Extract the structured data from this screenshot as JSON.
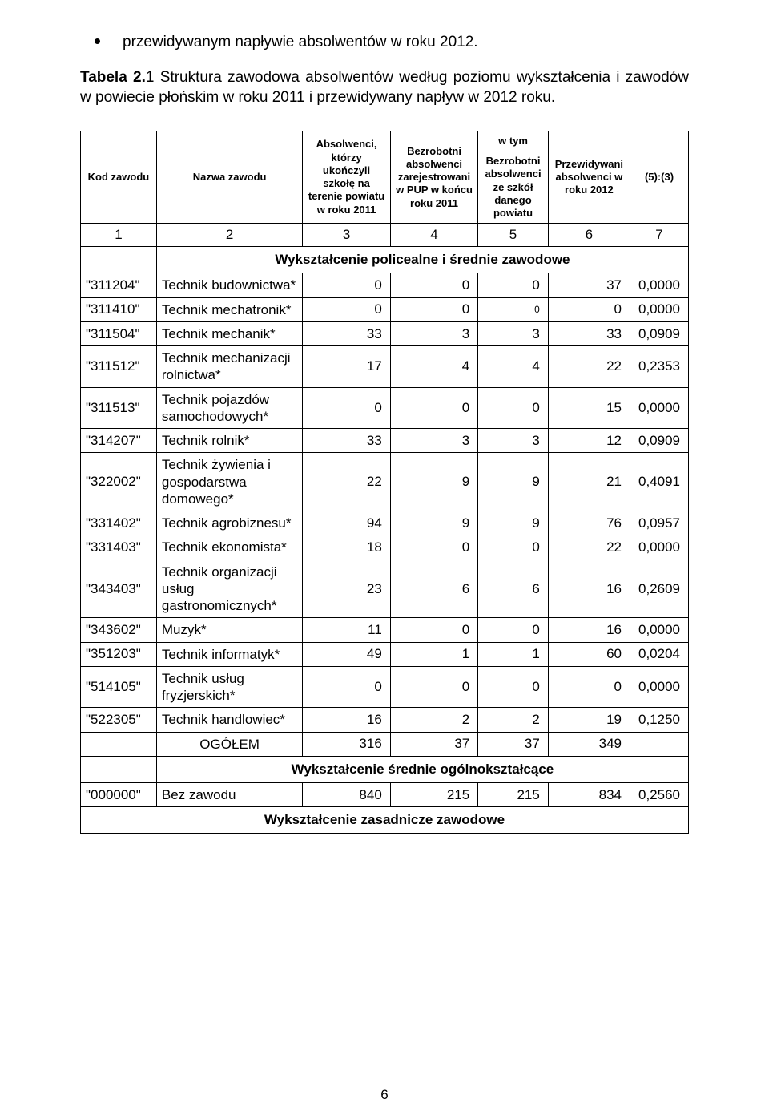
{
  "bullet_text": "przewidywanym napływie absolwentów w roku 2012.",
  "caption_bold": "Tabela 2.",
  "caption_rest": "1 Struktura zawodowa absolwentów według poziomu wykształcenia i zawodów w powiecie płońskim w roku 2011 i przewidywany napływ w 2012 roku.",
  "table": {
    "headers": {
      "kod": "Kod zawodu",
      "nazwa": "Nazwa zawodu",
      "abs": "Absolwenci, którzy ukończyli szkołę na terenie powiatu w roku 2011",
      "bezr": "Bezrobotni absolwenci zarejestrowani w PUP w końcu roku 2011",
      "wtym": "w tym",
      "wtym_sub": "Bezrobotni absolwenci ze szkół danego powiatu",
      "przew": "Przewidywani absolwenci w roku 2012",
      "ratio": "(5):(3)"
    },
    "col_nums": [
      "1",
      "2",
      "3",
      "4",
      "5",
      "6",
      "7"
    ],
    "sections": {
      "policealne": "Wykształcenie policealne i średnie zawodowe",
      "ogolne": "Wykształcenie średnie ogólnokształcące",
      "zasadnicze": "Wykształcenie zasadnicze zawodowe"
    },
    "rows_policealne": [
      {
        "code": "\"311204\"",
        "name": "Technik budownictwa*",
        "c3": "0",
        "c4": "0",
        "c5": "0",
        "c6": "37",
        "c7": "0,0000"
      },
      {
        "code": "\"311410\"",
        "name": "Technik mechatronik*",
        "c3": "0",
        "c4": "0",
        "c5": "0",
        "c5_small": true,
        "c6": "0",
        "c7": "0,0000"
      },
      {
        "code": "\"311504\"",
        "name": "Technik mechanik*",
        "c3": "33",
        "c4": "3",
        "c5": "3",
        "c6": "33",
        "c7": "0,0909"
      },
      {
        "code": "\"311512\"",
        "name": "Technik mechanizacji rolnictwa*",
        "c3": "17",
        "c4": "4",
        "c5": "4",
        "c6": "22",
        "c7": "0,2353"
      },
      {
        "code": "\"311513\"",
        "name": "Technik pojazdów samochodowych*",
        "c3": "0",
        "c4": "0",
        "c5": "0",
        "c6": "15",
        "c7": "0,0000"
      },
      {
        "code": "\"314207\"",
        "name": "Technik rolnik*",
        "c3": "33",
        "c4": "3",
        "c5": "3",
        "c6": "12",
        "c7": "0,0909"
      },
      {
        "code": "\"322002\"",
        "name": "Technik żywienia i gospodarstwa domowego*",
        "c3": "22",
        "c4": "9",
        "c5": "9",
        "c6": "21",
        "c7": "0,4091"
      },
      {
        "code": "\"331402\"",
        "name": "Technik agrobiznesu*",
        "c3": "94",
        "c4": "9",
        "c5": "9",
        "c6": "76",
        "c7": "0,0957"
      },
      {
        "code": "\"331403\"",
        "name": "Technik ekonomista*",
        "c3": "18",
        "c4": "0",
        "c5": "0",
        "c6": "22",
        "c7": "0,0000"
      },
      {
        "code": "\"343403\"",
        "name": "Technik organizacji usług gastronomicznych*",
        "c3": "23",
        "c4": "6",
        "c5": "6",
        "c6": "16",
        "c7": "0,2609"
      },
      {
        "code": "\"343602\"",
        "name": "Muzyk*",
        "c3": "11",
        "c4": "0",
        "c5": "0",
        "c6": "16",
        "c7": "0,0000"
      },
      {
        "code": "\"351203\"",
        "name": "Technik informatyk*",
        "c3": "49",
        "c4": "1",
        "c5": "1",
        "c6": "60",
        "c7": "0,0204"
      },
      {
        "code": "\"514105\"",
        "name": "Technik usług fryzjerskich*",
        "c3": "0",
        "c4": "0",
        "c5": "0",
        "c6": "0",
        "c7": "0,0000"
      },
      {
        "code": "\"522305\"",
        "name": "Technik handlowiec*",
        "c3": "16",
        "c4": "2",
        "c5": "2",
        "c6": "19",
        "c7": "0,1250"
      }
    ],
    "ogolem_label": "OGÓŁEM",
    "ogolem": {
      "c3": "316",
      "c4": "37",
      "c5": "37",
      "c6": "349"
    },
    "row_ogolne": {
      "code": "\"000000\"",
      "name": "Bez zawodu",
      "c3": "840",
      "c4": "215",
      "c5": "215",
      "c6": "834",
      "c7": "0,2560"
    }
  },
  "page_number": "6"
}
